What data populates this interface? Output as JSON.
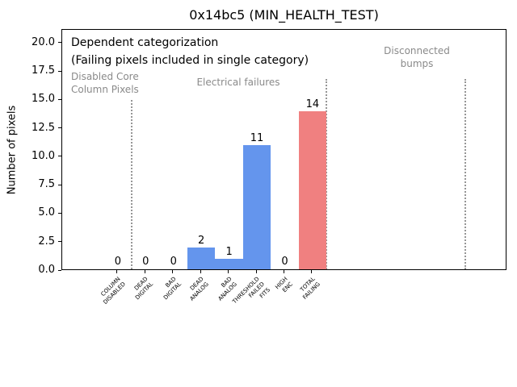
{
  "figure": {
    "title": "0x14bc5 (MIN_HEALTH_TEST)"
  },
  "chart_data": {
    "type": "bar",
    "title": "0x14bc5 (MIN_HEALTH_TEST)",
    "xlabel": "",
    "ylabel": "Number of pixels",
    "grid": false,
    "legend": null,
    "xlim": [
      -2,
      14
    ],
    "ylim": [
      0,
      21.2
    ],
    "ytick_labels": [
      "0.0",
      "2.5",
      "5.0",
      "7.5",
      "10.0",
      "12.5",
      "15.0",
      "17.5",
      "20.0"
    ],
    "categories": [
      "COLUMN\nDISABLED",
      "DEAD\nDIGITAL",
      "BAD\nDIGITAL",
      "DEAD\nANALOG",
      "BAD\nANALOG",
      "THRESHOLD\nFAILED\nFITS",
      "HIGH\nENC",
      "TOTAL\nFAILING"
    ],
    "values": [
      0,
      0,
      0,
      2,
      1,
      11,
      0,
      14
    ],
    "bar_colors": [
      "#6495ed",
      "#6495ed",
      "#6495ed",
      "#6495ed",
      "#6495ed",
      "#6495ed",
      "#6495ed",
      "#f08080"
    ],
    "colors": {
      "bar_blue": "#6495ed",
      "bar_red": "#f08080",
      "separator_gray": "#969696",
      "annotation_gray": "#8a8a8a",
      "text_black": "#000000"
    },
    "separators": [
      {
        "x": 0.5,
        "y_top": 15.0
      },
      {
        "x": 7.5,
        "y_top": 16.9
      },
      {
        "x": 12.5,
        "y_top": 16.9
      }
    ],
    "annotations": {
      "dependent": "Dependent categorization",
      "failing_note": "(Failing pixels included in single category)",
      "disabled_core": "Disabled Core\nColumn Pixels",
      "electrical": "Electrical failures",
      "disconnected": "Disconnected\nbumps"
    }
  }
}
